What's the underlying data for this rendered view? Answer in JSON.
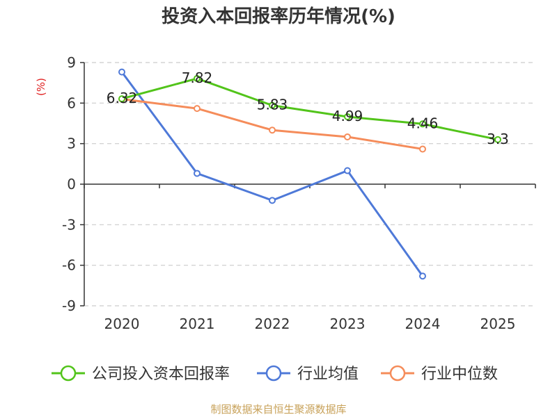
{
  "chart_data": {
    "type": "line",
    "title": "投资入本回报率历年情况(%)",
    "ylabel": "(%)",
    "categories": [
      "2020",
      "2021",
      "2022",
      "2023",
      "2024",
      "2025"
    ],
    "ylim": [
      -9,
      9
    ],
    "yticks": [
      "9",
      "6",
      "3",
      "0",
      "-3",
      "-6",
      "-9"
    ],
    "grid": true,
    "series": [
      {
        "name": "公司投入资本回报率",
        "color": "#52c41a",
        "values": [
          6.32,
          7.82,
          5.83,
          4.99,
          4.46,
          3.3
        ],
        "labels": [
          "6.32",
          "7.82",
          "5.83",
          "4.99",
          "4.46",
          "3.3"
        ]
      },
      {
        "name": "行业均值",
        "color": "#4e79d8",
        "values": [
          8.3,
          0.8,
          -1.2,
          1.0,
          -6.8,
          null
        ]
      },
      {
        "name": "行业中位数",
        "color": "#f58c5a",
        "values": [
          6.3,
          5.6,
          4.0,
          3.5,
          2.6,
          null
        ]
      }
    ],
    "legend_position": "bottom",
    "source": "制图数据来自恒生聚源数据库"
  }
}
